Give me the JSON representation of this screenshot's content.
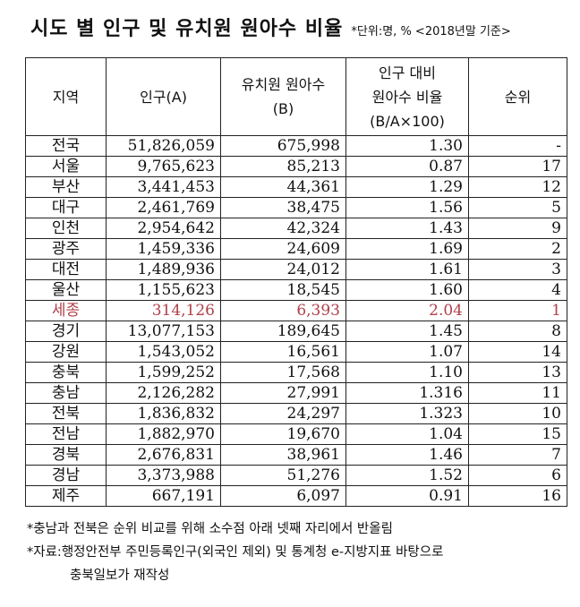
{
  "title": "시도 별 인구 및 유치원 원아수 비율",
  "unit_note": "*단위:명, % <2018년말 기준>",
  "headers": [
    "지역",
    "인구(A)",
    "유치원 원아수\n(B)",
    "인구 대비\n원아수 비율\n(B/A×100)",
    "순위"
  ],
  "highlight_color": "#b0404a",
  "rows": [
    [
      "전국",
      "51,826,059",
      "675,998",
      "1.30",
      "-"
    ],
    [
      "서울",
      "9,765,623",
      "85,213",
      "0.87",
      "17"
    ],
    [
      "부산",
      "3,441,453",
      "44,361",
      "1.29",
      "12"
    ],
    [
      "대구",
      "2,461,769",
      "38,475",
      "1.56",
      "5"
    ],
    [
      "인천",
      "2,954,642",
      "42,324",
      "1.43",
      "9"
    ],
    [
      "광주",
      "1,459,336",
      "24,609",
      "1.69",
      "2"
    ],
    [
      "대전",
      "1,489,936",
      "24,012",
      "1.61",
      "3"
    ],
    [
      "울산",
      "1,155,623",
      "18,545",
      "1.60",
      "4"
    ],
    [
      "세종",
      "314,126",
      "6,393",
      "2.04",
      "1"
    ],
    [
      "경기",
      "13,077,153",
      "189,645",
      "1.45",
      "8"
    ],
    [
      "강원",
      "1,543,052",
      "16,561",
      "1.07",
      "14"
    ],
    [
      "충북",
      "1,599,252",
      "17,568",
      "1.10",
      "13"
    ],
    [
      "충남",
      "2,126,282",
      "27,991",
      "1.316",
      "11"
    ],
    [
      "전북",
      "1,836,832",
      "24,297",
      "1.323",
      "10"
    ],
    [
      "전남",
      "1,882,970",
      "19,670",
      "1.04",
      "15"
    ],
    [
      "경북",
      "2,676,831",
      "38,961",
      "1.46",
      "7"
    ],
    [
      "경남",
      "3,373,988",
      "51,276",
      "1.52",
      "6"
    ],
    [
      "제주",
      "667,191",
      "6,097",
      "0.91",
      "16"
    ]
  ],
  "highlighted_region": "세종",
  "notes": [
    "*충남과 전북은 순위 비교를 위해 소수점 아래 넷째 자리에서 반올림",
    "*자료:행정안전부 주민등록인구(외국인 제외) 및 통계청 e-지방지표 바탕으로",
    "충북일보가 재작성"
  ]
}
